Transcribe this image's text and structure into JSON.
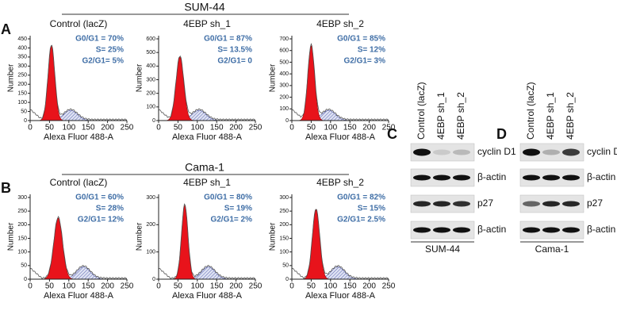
{
  "panels": [
    {
      "label": "A",
      "cell_line": "SUM-44",
      "plots": [
        {
          "title": "Control (lacZ)",
          "stats": [
            "G0/G1 = 70%",
            "S= 25%",
            "G2/G1= 5%"
          ],
          "y_label": "Number",
          "x_label": "Alexa Fluor 488-A",
          "yticks": [
            0,
            50,
            100,
            150,
            200,
            250,
            300,
            350,
            400,
            450
          ],
          "xticks": [
            0,
            50,
            100,
            150,
            200,
            250
          ]
        },
        {
          "title": "4EBP sh_1",
          "stats": [
            "G0/G1 = 87%",
            "S= 13.5%",
            "G2/G1= 0"
          ],
          "y_label": "Number",
          "x_label": "Alexa Fluor 488-A",
          "yticks": [
            0,
            100,
            200,
            300,
            400,
            500,
            600
          ],
          "xticks": [
            0,
            50,
            100,
            150,
            200,
            250
          ]
        },
        {
          "title": "4EBP sh_2",
          "stats": [
            "G0/G1 = 85%",
            "S= 12%",
            "G2/G1= 3%"
          ],
          "y_label": "Number",
          "x_label": "Alexa Fluor 488-A",
          "yticks": [
            0,
            100,
            200,
            300,
            400,
            500,
            600,
            700
          ],
          "xticks": [
            0,
            50,
            100,
            150,
            200,
            250
          ]
        }
      ]
    },
    {
      "label": "B",
      "cell_line": "Cama-1",
      "plots": [
        {
          "title": "Control (lacZ)",
          "stats": [
            "G0/G1 = 60%",
            "S= 28%",
            "G2/G1= 12%"
          ],
          "y_label": "Number",
          "x_label": "Alexa Fluor 488-A",
          "yticks": [
            0,
            50,
            100,
            150,
            200,
            250,
            300
          ],
          "xticks": [
            0,
            50,
            100,
            150,
            200,
            250
          ]
        },
        {
          "title": "4EBP sh_1",
          "stats": [
            "G0/G1 = 80%",
            "S= 19%",
            "G2/G1= 2%"
          ],
          "y_label": "Number",
          "x_label": "Alexa Fluor 488-A",
          "yticks": [
            0,
            100,
            200,
            300
          ],
          "xticks": [
            0,
            50,
            100,
            150,
            200,
            250
          ]
        },
        {
          "title": "4EBP sh_2",
          "stats": [
            "G0/G1 = 82%",
            "S= 15%",
            "G2/G1= 2.5%"
          ],
          "y_label": "Number",
          "x_label": "Alexa Fluor 488-A",
          "yticks": [
            0,
            50,
            100,
            150,
            200,
            250,
            300
          ],
          "xticks": [
            0,
            50,
            100,
            150,
            200,
            250
          ]
        }
      ]
    }
  ],
  "blots": [
    {
      "label": "C",
      "lanes": [
        "Control (lacZ)",
        "4EBP sh_1",
        "4EBP sh_2"
      ],
      "rows": [
        "cyclin D1",
        "β-actin",
        "p27",
        "β-actin"
      ],
      "cell_line": "SUM-44"
    },
    {
      "label": "D",
      "lanes": [
        "Control (lacZ)",
        "4EBP sh_1",
        "4EBP sh_2"
      ],
      "rows": [
        "cyclin D1",
        "β-actin",
        "p27",
        "β-actin"
      ],
      "cell_line": "Cama-1"
    }
  ]
}
